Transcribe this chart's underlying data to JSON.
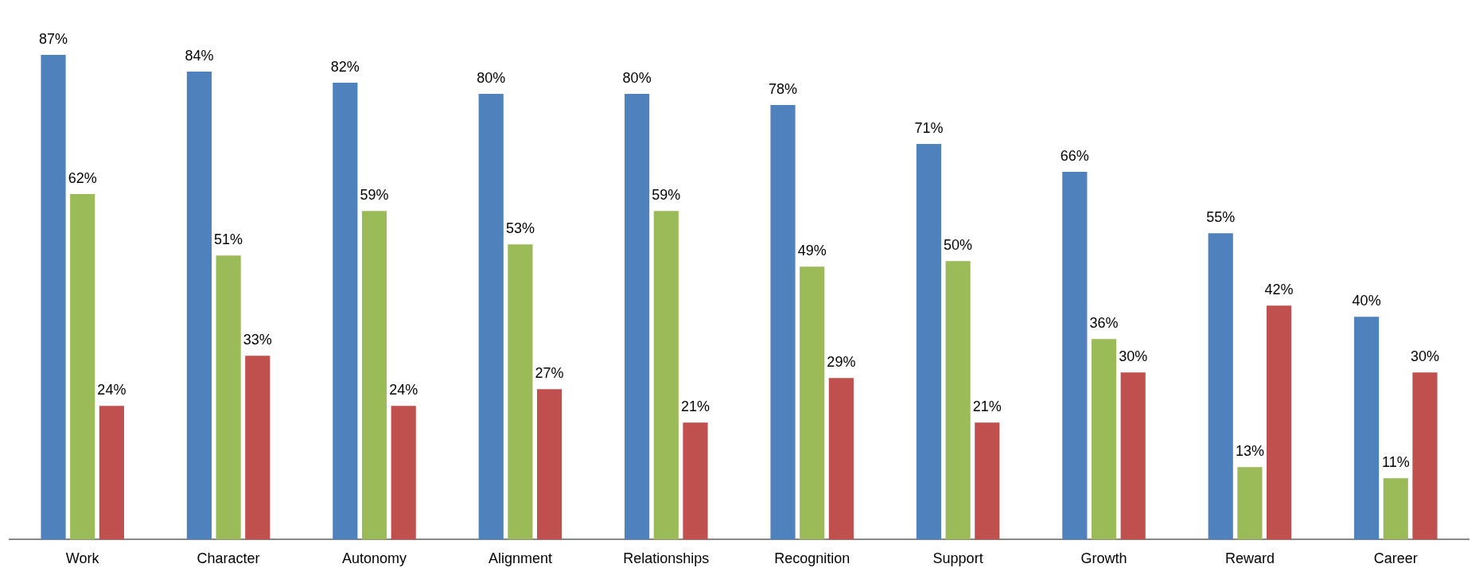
{
  "chart_data": {
    "type": "bar",
    "categories": [
      "Work",
      "Character",
      "Autonomy",
      "Alignment",
      "Relationships",
      "Recognition",
      "Support",
      "Growth",
      "Reward",
      "Career"
    ],
    "series": [
      {
        "color": "#4f81bd",
        "values": [
          87,
          84,
          82,
          80,
          80,
          78,
          71,
          66,
          55,
          40
        ],
        "value_labels": [
          "87%",
          "84%",
          "82%",
          "80%",
          "80%",
          "78%",
          "71%",
          "66%",
          "55%",
          "40%"
        ]
      },
      {
        "color": "#9bbb59",
        "values": [
          62,
          51,
          59,
          53,
          59,
          49,
          50,
          36,
          13,
          11
        ],
        "value_labels": [
          "62%",
          "51%",
          "59%",
          "53%",
          "59%",
          "49%",
          "50%",
          "36%",
          "13%",
          "11%"
        ]
      },
      {
        "color": "#c0504d",
        "values": [
          24,
          33,
          24,
          27,
          21,
          29,
          21,
          30,
          42,
          30
        ],
        "value_labels": [
          "24%",
          "33%",
          "24%",
          "27%",
          "21%",
          "29%",
          "21%",
          "30%",
          "42%",
          "30%"
        ]
      }
    ],
    "grid": false,
    "legend": false,
    "tick_labels": "x"
  }
}
